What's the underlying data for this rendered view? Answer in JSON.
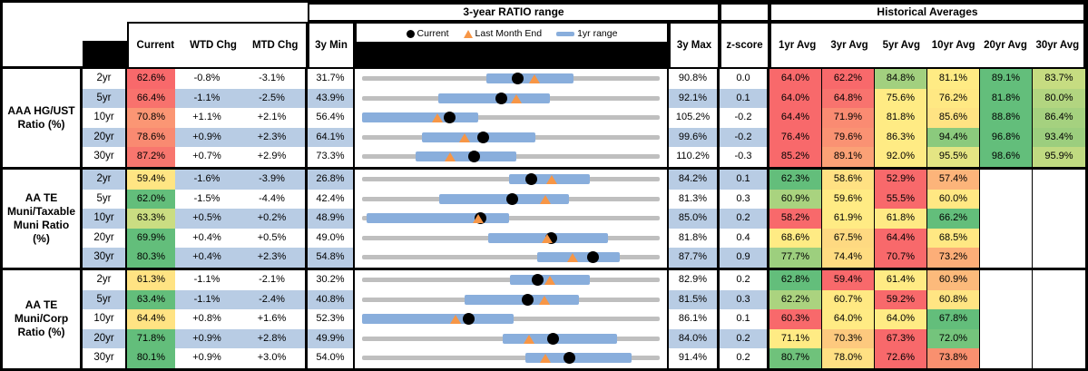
{
  "title_ratio_range": "3-year RATIO range",
  "title_historical": "Historical Averages",
  "columns": {
    "current": "Current",
    "wtd": "WTD Chg",
    "mtd": "MTD Chg",
    "min": "3y Min",
    "max": "3y Max",
    "z": "z-score"
  },
  "avg_columns": [
    "1yr Avg",
    "3yr Avg",
    "5yr Avg",
    "10yr Avg",
    "20yr Avg",
    "30yr Avg"
  ],
  "legend": {
    "current": "Current",
    "last_month_end": "Last Month End",
    "range": "1yr range"
  },
  "colors": {
    "stripe": "#B8CCE4",
    "range_bar": "#89AEDC",
    "track": "#BFBFBF",
    "triangle": "#F79646",
    "dot": "#000000",
    "scale_red": "#F8696B",
    "scale_yellow": "#FFEB84",
    "scale_green": "#63BE7B"
  },
  "chart_data": {
    "type": "table",
    "note": "bar/dot/tri are fractions of the 3y min-max track",
    "groups": [
      {
        "label_lines": [
          "AAA HG/UST",
          "Ratio (%)"
        ],
        "rows": [
          {
            "tenor": "2yr",
            "current": "62.6%",
            "current_bg": "#F8696B",
            "wtd": "-0.8%",
            "mtd": "-3.1%",
            "min": "31.7%",
            "max": "90.8%",
            "z": "0.0",
            "bar": [
              0.418,
              0.709
            ],
            "dot": 0.523,
            "tri": 0.578,
            "avgs": [
              "64.0%",
              "62.2%",
              "84.8%",
              "81.1%",
              "89.1%",
              "83.7%"
            ],
            "avg_bg": [
              "#F8696B",
              "#F8696B",
              "#A2D07F",
              "#FFEB84",
              "#63BE7B",
              "#C6DC81"
            ]
          },
          {
            "tenor": "5yr",
            "current": "66.4%",
            "current_bg": "#F8726D",
            "wtd": "-1.1%",
            "mtd": "-2.5%",
            "min": "43.9%",
            "max": "92.1%",
            "z": "0.1",
            "bar": [
              0.257,
              0.632
            ],
            "dot": 0.467,
            "tri": 0.517,
            "avgs": [
              "64.0%",
              "64.8%",
              "75.6%",
              "76.2%",
              "81.8%",
              "80.0%"
            ],
            "avg_bg": [
              "#F8696B",
              "#F8736E",
              "#FFEB84",
              "#FFE883",
              "#63BE7B",
              "#B2D580"
            ]
          },
          {
            "tenor": "10yr",
            "current": "70.8%",
            "current_bg": "#FB9674",
            "wtd": "+1.1%",
            "mtd": "+2.1%",
            "min": "56.4%",
            "max": "105.2%",
            "z": "-0.2",
            "bar": [
              0.0,
              0.391
            ],
            "dot": 0.295,
            "tri": 0.253,
            "avgs": [
              "64.4%",
              "71.9%",
              "81.8%",
              "85.6%",
              "88.8%",
              "86.4%"
            ],
            "avg_bg": [
              "#F8696B",
              "#FA8B72",
              "#FFEB84",
              "#FFE383",
              "#63BE7B",
              "#A5D17F"
            ]
          },
          {
            "tenor": "20yr",
            "current": "78.6%",
            "current_bg": "#F98A71",
            "wtd": "+0.9%",
            "mtd": "+2.3%",
            "min": "64.1%",
            "max": "99.6%",
            "z": "-0.2",
            "bar": [
              0.2,
              0.583
            ],
            "dot": 0.408,
            "tri": 0.345,
            "avgs": [
              "76.4%",
              "79.6%",
              "86.3%",
              "94.4%",
              "96.8%",
              "93.4%"
            ],
            "avg_bg": [
              "#F8696B",
              "#FA9273",
              "#FFEB84",
              "#8BCA7D",
              "#63BE7B",
              "#9CCE7E"
            ]
          },
          {
            "tenor": "30yr",
            "current": "87.2%",
            "current_bg": "#F8766E",
            "wtd": "+0.7%",
            "mtd": "+2.9%",
            "min": "73.3%",
            "max": "110.2%",
            "z": "-0.3",
            "bar": [
              0.179,
              0.519
            ],
            "dot": 0.377,
            "tri": 0.297,
            "avgs": [
              "85.2%",
              "89.1%",
              "92.0%",
              "95.5%",
              "98.6%",
              "95.9%"
            ],
            "avg_bg": [
              "#F8696B",
              "#FBA176",
              "#FFEB84",
              "#E4E583",
              "#63BE7B",
              "#C0DA81"
            ]
          }
        ]
      },
      {
        "label_lines": [
          "AA TE",
          "Muni/Taxable",
          "Muni Ratio",
          "(%)"
        ],
        "rows": [
          {
            "tenor": "2yr",
            "current": "59.4%",
            "current_bg": "#FFE583",
            "wtd": "-1.6%",
            "mtd": "-3.9%",
            "min": "26.8%",
            "max": "84.2%",
            "z": "0.1",
            "bar": [
              0.494,
              0.764
            ],
            "dot": 0.568,
            "tri": 0.637,
            "avgs": [
              "62.3%",
              "58.6%",
              "52.9%",
              "57.4%",
              "",
              ""
            ],
            "avg_bg": [
              "#63BE7B",
              "#FFE183",
              "#F8696B",
              "#FCB47A",
              "",
              ""
            ]
          },
          {
            "tenor": "5yr",
            "current": "62.0%",
            "current_bg": "#63BE7B",
            "wtd": "-1.5%",
            "mtd": "-4.4%",
            "min": "42.4%",
            "max": "81.3%",
            "z": "0.3",
            "bar": [
              0.258,
              0.695
            ],
            "dot": 0.504,
            "tri": 0.615,
            "avgs": [
              "60.9%",
              "59.6%",
              "55.5%",
              "60.0%",
              "",
              ""
            ],
            "avg_bg": [
              "#A9D37F",
              "#FFEB84",
              "#F8696B",
              "#FFE883",
              "",
              ""
            ]
          },
          {
            "tenor": "10yr",
            "current": "63.3%",
            "current_bg": "#CADD82",
            "wtd": "+0.5%",
            "mtd": "+0.2%",
            "min": "48.9%",
            "max": "85.0%",
            "z": "0.2",
            "bar": [
              0.015,
              0.495
            ],
            "dot": 0.399,
            "tri": 0.39,
            "avgs": [
              "58.2%",
              "61.9%",
              "61.8%",
              "66.2%",
              "",
              ""
            ],
            "avg_bg": [
              "#F8696B",
              "#FFEB84",
              "#FFEA84",
              "#63BE7B",
              "",
              ""
            ]
          },
          {
            "tenor": "20yr",
            "current": "69.9%",
            "current_bg": "#63BE7B",
            "wtd": "+0.4%",
            "mtd": "+0.5%",
            "min": "49.0%",
            "max": "81.8%",
            "z": "0.4",
            "bar": [
              0.423,
              0.827
            ],
            "dot": 0.637,
            "tri": 0.622,
            "avgs": [
              "68.6%",
              "67.5%",
              "64.4%",
              "68.5%",
              "",
              ""
            ],
            "avg_bg": [
              "#FFEB84",
              "#FED981",
              "#F8696B",
              "#FFE883",
              "",
              ""
            ]
          },
          {
            "tenor": "30yr",
            "current": "80.3%",
            "current_bg": "#63BE7B",
            "wtd": "+0.4%",
            "mtd": "+2.3%",
            "min": "54.8%",
            "max": "87.7%",
            "z": "0.9",
            "bar": [
              0.587,
              0.867
            ],
            "dot": 0.775,
            "tri": 0.708,
            "avgs": [
              "77.7%",
              "74.4%",
              "70.7%",
              "73.2%",
              "",
              ""
            ],
            "avg_bg": [
              "#9DCF7E",
              "#FFDC81",
              "#F8696B",
              "#FCAE78",
              "",
              ""
            ]
          }
        ]
      },
      {
        "label_lines": [
          "AA TE",
          "Muni/Corp",
          "Ratio (%)"
        ],
        "rows": [
          {
            "tenor": "2yr",
            "current": "61.3%",
            "current_bg": "#FFE383",
            "wtd": "-1.1%",
            "mtd": "-2.1%",
            "min": "30.2%",
            "max": "82.9%",
            "z": "0.2",
            "bar": [
              0.496,
              0.766
            ],
            "dot": 0.59,
            "tri": 0.63,
            "avgs": [
              "62.8%",
              "59.4%",
              "61.4%",
              "60.9%",
              "",
              ""
            ],
            "avg_bg": [
              "#63BE7B",
              "#F8696B",
              "#FFEB84",
              "#FCBA7B",
              "",
              ""
            ]
          },
          {
            "tenor": "5yr",
            "current": "63.4%",
            "current_bg": "#63BE7B",
            "wtd": "-1.1%",
            "mtd": "-2.4%",
            "min": "40.8%",
            "max": "81.5%",
            "z": "0.3",
            "bar": [
              0.343,
              0.728
            ],
            "dot": 0.555,
            "tri": 0.613,
            "avgs": [
              "62.2%",
              "60.7%",
              "59.2%",
              "60.8%",
              "",
              ""
            ],
            "avg_bg": [
              "#ABD37F",
              "#FFE983",
              "#F8696B",
              "#FFE583",
              "",
              ""
            ]
          },
          {
            "tenor": "10yr",
            "current": "64.4%",
            "current_bg": "#FFE383",
            "wtd": "+0.8%",
            "mtd": "+1.6%",
            "min": "52.3%",
            "max": "86.1%",
            "z": "0.1",
            "bar": [
              0.0,
              0.509
            ],
            "dot": 0.358,
            "tri": 0.314,
            "avgs": [
              "60.3%",
              "64.0%",
              "64.0%",
              "67.8%",
              "",
              ""
            ],
            "avg_bg": [
              "#F8696B",
              "#FFEB84",
              "#FFEB84",
              "#63BE7B",
              "",
              ""
            ]
          },
          {
            "tenor": "20yr",
            "current": "71.8%",
            "current_bg": "#63BE7B",
            "wtd": "+0.9%",
            "mtd": "+2.8%",
            "min": "49.9%",
            "max": "84.0%",
            "z": "0.2",
            "bar": [
              0.474,
              0.857
            ],
            "dot": 0.642,
            "tri": 0.561,
            "avgs": [
              "71.1%",
              "70.3%",
              "67.3%",
              "72.0%",
              "",
              ""
            ],
            "avg_bg": [
              "#FFEB84",
              "#FDC97E",
              "#F8696B",
              "#74C47C",
              "",
              ""
            ]
          },
          {
            "tenor": "30yr",
            "current": "80.1%",
            "current_bg": "#63BE7B",
            "wtd": "+0.9%",
            "mtd": "+3.0%",
            "min": "54.0%",
            "max": "91.4%",
            "z": "0.2",
            "bar": [
              0.549,
              0.907
            ],
            "dot": 0.698,
            "tri": 0.615,
            "avgs": [
              "80.7%",
              "78.0%",
              "72.6%",
              "73.8%",
              "",
              ""
            ],
            "avg_bg": [
              "#6FC27B",
              "#FFE083",
              "#F8696B",
              "#F9906F",
              "",
              ""
            ]
          }
        ]
      }
    ]
  }
}
